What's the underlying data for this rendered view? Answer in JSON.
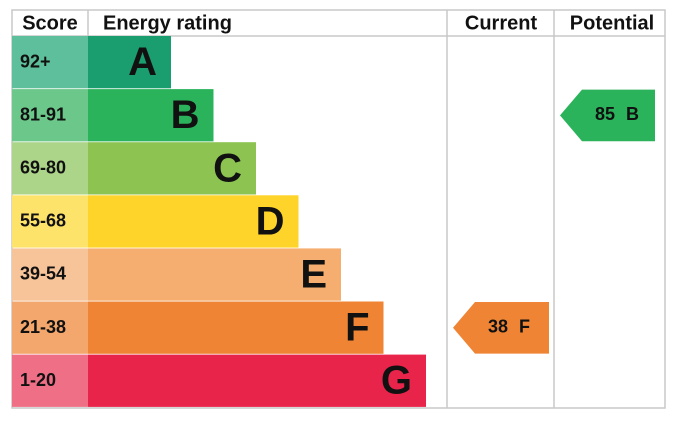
{
  "header": {
    "score": "Score",
    "energy_rating": "Energy rating",
    "current": "Current",
    "potential": "Potential"
  },
  "bands": [
    {
      "score": "92+",
      "letter": "A",
      "color": "#1a9e6f",
      "score_color": "#5dbf9b"
    },
    {
      "score": "81-91",
      "letter": "B",
      "color": "#2bb35b",
      "score_color": "#6cc88a"
    },
    {
      "score": "69-80",
      "letter": "C",
      "color": "#8cc351",
      "score_color": "#acd58a"
    },
    {
      "score": "55-68",
      "letter": "D",
      "color": "#ffd42a",
      "score_color": "#fde36a"
    },
    {
      "score": "39-54",
      "letter": "E",
      "color": "#f5ae70",
      "score_color": "#f7c49a"
    },
    {
      "score": "21-38",
      "letter": "F",
      "color": "#ef8534",
      "score_color": "#f3a76d"
    },
    {
      "score": "1-20",
      "letter": "G",
      "color": "#e9244a",
      "score_color": "#ef6f86"
    }
  ],
  "current": {
    "value": 38,
    "rating": "F",
    "color": "#ef8534"
  },
  "potential": {
    "value": 85,
    "rating": "B",
    "color": "#2bb35b"
  }
}
